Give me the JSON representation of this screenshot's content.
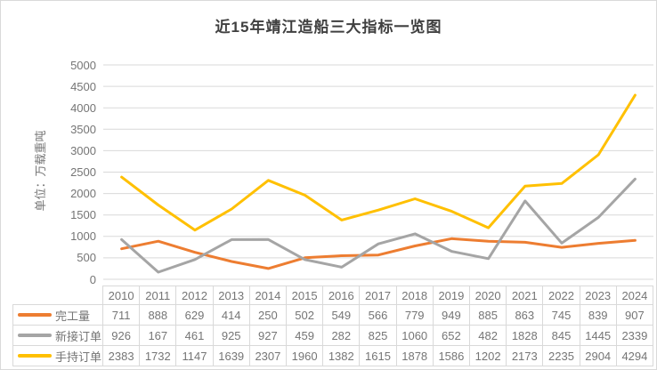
{
  "title": "近15年靖江造船三大指标一览图",
  "chart_data": {
    "type": "line",
    "title": "近15年靖江造船三大指标一览图",
    "ylabel": "单位：万载重吨",
    "xlabel": "",
    "categories": [
      "2010",
      "2011",
      "2012",
      "2013",
      "2014",
      "2015",
      "2016",
      "2017",
      "2018",
      "2019",
      "2020",
      "2021",
      "2022",
      "2023",
      "2024"
    ],
    "series": [
      {
        "name": "完工量",
        "color": "#ED7D31",
        "values": [
          711,
          888,
          629,
          414,
          250,
          502,
          549,
          566,
          779,
          949,
          885,
          863,
          745,
          839,
          907
        ]
      },
      {
        "name": "新接订单",
        "color": "#A5A5A5",
        "values": [
          926,
          167,
          461,
          925,
          927,
          459,
          282,
          825,
          1060,
          652,
          482,
          1828,
          845,
          1445,
          2339
        ]
      },
      {
        "name": "手持订单",
        "color": "#FFC000",
        "values": [
          2383,
          1732,
          1147,
          1639,
          2307,
          1960,
          1382,
          1615,
          1878,
          1586,
          1202,
          2173,
          2235,
          2904,
          4294
        ]
      }
    ],
    "ylim": [
      0,
      5000
    ],
    "ytick_step": 500,
    "ytick_labels": [
      "0",
      "500",
      "1000",
      "1500",
      "2000",
      "2500",
      "3000",
      "3500",
      "4000",
      "4500",
      "5000"
    ],
    "grid": true,
    "legend_position": "left-of-data-table",
    "data_table": true
  },
  "colors": {
    "background": "#FFFFFF",
    "frame_border": "#D9D9D9",
    "gridline": "#D9D9D9",
    "table_border": "#D9D9D9",
    "title_text": "#404040",
    "axis_text": "#757575"
  }
}
